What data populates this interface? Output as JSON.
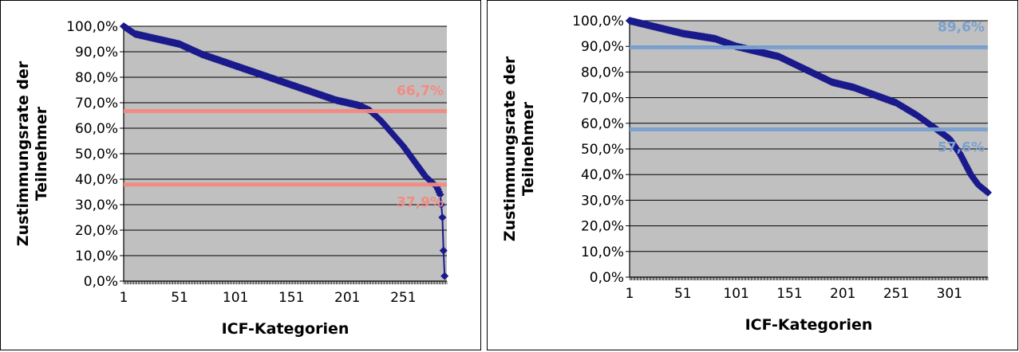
{
  "chart_data": [
    {
      "type": "line",
      "xlabel": "ICF-Kategorien",
      "ylabel_lines": [
        "Zustimmungsrate der",
        "Teilnehmer"
      ],
      "x_ticks": [
        "1",
        "51",
        "101",
        "151",
        "201",
        "251"
      ],
      "x_tick_values": [
        1,
        51,
        101,
        151,
        201,
        251
      ],
      "y_ticks": [
        "0,0%",
        "10,0%",
        "20,0%",
        "30,0%",
        "40,0%",
        "50,0%",
        "60,0%",
        "70,0%",
        "80,0%",
        "90,0%",
        "100,0%"
      ],
      "xlim": [
        1,
        290
      ],
      "ylim": [
        0,
        100
      ],
      "grid": true,
      "series": [
        {
          "color": "#1a1a8c",
          "marker": "diamond",
          "n_points": 288,
          "points": [
            [
              1,
              100
            ],
            [
              11,
              97
            ],
            [
              31,
              95
            ],
            [
              51,
              93
            ],
            [
              71,
              89
            ],
            [
              91,
              86
            ],
            [
              111,
              83
            ],
            [
              131,
              80
            ],
            [
              151,
              77
            ],
            [
              171,
              74
            ],
            [
              191,
              71
            ],
            [
              211,
              69
            ],
            [
              221,
              67
            ],
            [
              231,
              63
            ],
            [
              241,
              58
            ],
            [
              251,
              53
            ],
            [
              261,
              47
            ],
            [
              271,
              41
            ],
            [
              281,
              37
            ],
            [
              284,
              34
            ],
            [
              285,
              30
            ],
            [
              286,
              25
            ],
            [
              287,
              12
            ],
            [
              288,
              2
            ]
          ]
        }
      ],
      "reference_lines": [
        {
          "value": 66.7,
          "label": "66,7%",
          "color": "#f28b82",
          "label_pos": "above"
        },
        {
          "value": 37.9,
          "label": "37,9%",
          "color": "#f28b82",
          "label_pos": "below"
        }
      ]
    },
    {
      "type": "line",
      "xlabel": "ICF-Kategorien",
      "ylabel_lines": [
        "Zustimmungsrate der",
        "Teilnehmer"
      ],
      "x_ticks": [
        "1",
        "51",
        "101",
        "151",
        "201",
        "251",
        "301"
      ],
      "x_tick_values": [
        1,
        51,
        101,
        151,
        201,
        251,
        301
      ],
      "y_ticks": [
        "0,0%",
        "10,0%",
        "20,0%",
        "30,0%",
        "40,0%",
        "50,0%",
        "60,0%",
        "70,0%",
        "80,0%",
        "90,0%",
        "100,0%"
      ],
      "xlim": [
        1,
        337
      ],
      "ylim": [
        0,
        100
      ],
      "grid": true,
      "series": [
        {
          "color": "#1a1a8c",
          "marker": "diamond",
          "n_points": 337,
          "points": [
            [
              1,
              100
            ],
            [
              11,
              99
            ],
            [
              31,
              97
            ],
            [
              51,
              95
            ],
            [
              81,
              93
            ],
            [
              101,
              90
            ],
            [
              121,
              88
            ],
            [
              141,
              86
            ],
            [
              151,
              84
            ],
            [
              171,
              80
            ],
            [
              191,
              76
            ],
            [
              211,
              74
            ],
            [
              231,
              71
            ],
            [
              251,
              68
            ],
            [
              271,
              63
            ],
            [
              291,
              57
            ],
            [
              301,
              54
            ],
            [
              311,
              48
            ],
            [
              321,
              40
            ],
            [
              328,
              36
            ],
            [
              337,
              33
            ]
          ]
        }
      ],
      "reference_lines": [
        {
          "value": 89.6,
          "label": "89,6%",
          "color": "#7aa1d0",
          "label_pos": "above"
        },
        {
          "value": 57.6,
          "label": "57,6%",
          "color": "#7aa1d0",
          "label_pos": "below"
        }
      ]
    }
  ]
}
